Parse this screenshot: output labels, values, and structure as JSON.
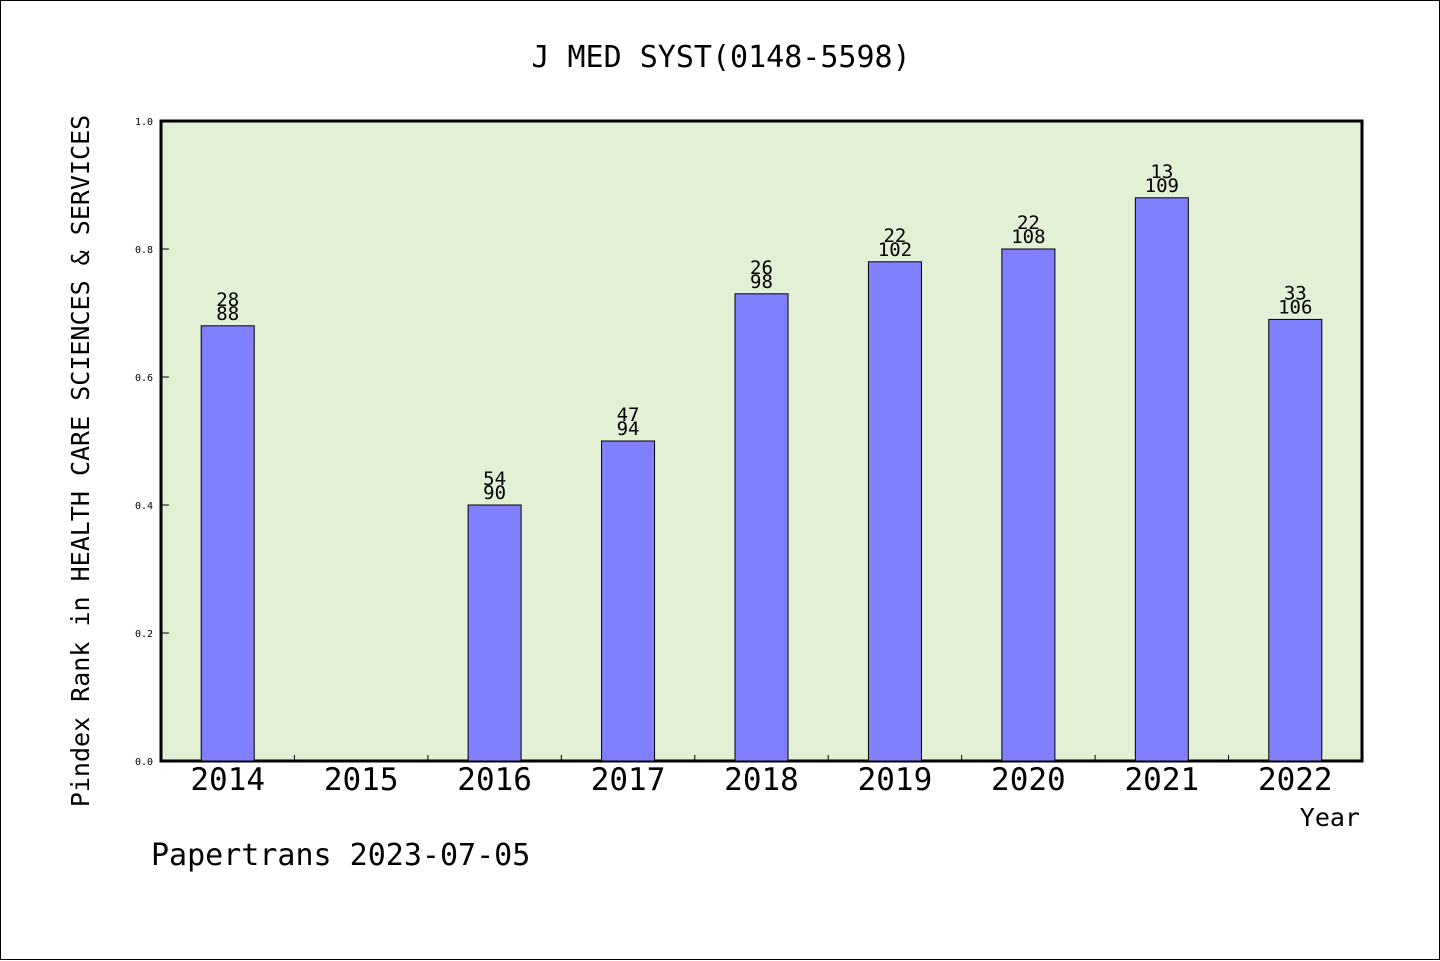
{
  "chart_data": {
    "type": "bar",
    "title": "J MED SYST(0148-5598)",
    "xlabel": "Year",
    "ylabel": "Pindex Rank in HEALTH CARE SCIENCES & SERVICES",
    "categories": [
      "2014",
      "2015",
      "2016",
      "2017",
      "2018",
      "2019",
      "2020",
      "2021",
      "2022"
    ],
    "values": [
      0.68,
      null,
      0.4,
      0.5,
      0.73,
      0.78,
      0.8,
      0.88,
      0.69
    ],
    "bar_labels": [
      {
        "rank": "28",
        "total": "88"
      },
      null,
      {
        "rank": "54",
        "total": "90"
      },
      {
        "rank": "47",
        "total": "94"
      },
      {
        "rank": "26",
        "total": "98"
      },
      {
        "rank": "22",
        "total": "102"
      },
      {
        "rank": "22",
        "total": "108"
      },
      {
        "rank": "13",
        "total": "109"
      },
      {
        "rank": "33",
        "total": "106"
      }
    ],
    "ylim": [
      0,
      1.0
    ],
    "yticks": [
      "0.0",
      "0.2",
      "0.4",
      "0.6",
      "0.8",
      "1.0"
    ],
    "grid": false,
    "legend": "none"
  },
  "footer": {
    "credit": "Papertrans 2023-07-05"
  },
  "colors": {
    "plot_background": "#e2f0d6",
    "bar_fill": "#8080ff",
    "outline": "#000000"
  }
}
